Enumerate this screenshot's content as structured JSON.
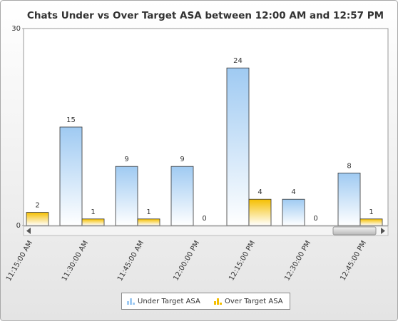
{
  "chart_data": {
    "type": "bar",
    "title": "Chats Under vs Over Target ASA between 12:00 AM and 12:57 PM",
    "categories": [
      "11:15:00 AM",
      "11:30:00 AM",
      "11:45:00 AM",
      "12:00:00 PM",
      "12:15:00 PM",
      "12:30:00 PM",
      "12:45:00 PM"
    ],
    "series": [
      {
        "name": "Under Target ASA",
        "color": "#9fcaf2",
        "values": [
          null,
          15,
          9,
          9,
          24,
          4,
          8
        ]
      },
      {
        "name": "Over Target ASA",
        "color": "#f5bf00",
        "values": [
          2,
          1,
          1,
          0,
          4,
          0,
          1
        ]
      }
    ],
    "ylim": [
      0,
      30
    ],
    "yticks": [
      0,
      30
    ],
    "legend": "bottom"
  }
}
